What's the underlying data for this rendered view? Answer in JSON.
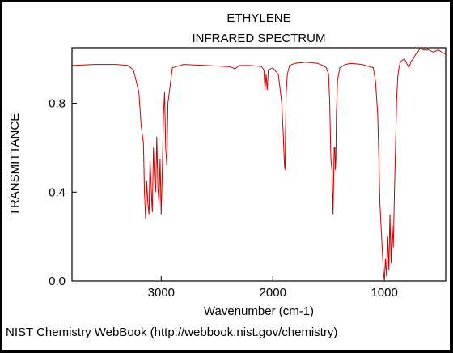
{
  "chart_data": {
    "type": "line",
    "title": "ETHYLENE",
    "subtitle": "INFRARED SPECTRUM",
    "xlabel": "Wavenumber (cm-1)",
    "ylabel": "TRANSMITTANCE",
    "footer": "NIST Chemistry WebBook (http://webbook.nist.gov/chemistry)",
    "xlim": [
      3800,
      450
    ],
    "ylim": [
      0.0,
      1.05
    ],
    "x_ticks": [
      3000,
      2000,
      1000
    ],
    "x_tick_labels": [
      "3000",
      "2000",
      "1000"
    ],
    "y_ticks": [
      0.0,
      0.4,
      0.8
    ],
    "y_tick_labels": [
      "0.0",
      "0.4",
      "0.8"
    ],
    "grid": false,
    "series_color": "#cc0000",
    "series": [
      {
        "x": [
          3800,
          3600,
          3400,
          3300,
          3250,
          3200,
          3180,
          3160,
          3150,
          3140,
          3130,
          3120,
          3110,
          3100,
          3090,
          3080,
          3070,
          3060,
          3050,
          3040,
          3030,
          3020,
          3010,
          3000,
          2990,
          2980,
          2970,
          2960,
          2950,
          2940,
          2900,
          2800,
          2600,
          2400,
          2360,
          2340,
          2300,
          2200,
          2100,
          2080,
          2070,
          2060,
          2050,
          2040,
          2000,
          1950,
          1920,
          1905,
          1895,
          1890,
          1885,
          1880,
          1870,
          1850,
          1800,
          1700,
          1600,
          1550,
          1520,
          1500,
          1490,
          1480,
          1470,
          1460,
          1450,
          1444,
          1440,
          1435,
          1430,
          1420,
          1400,
          1350,
          1300,
          1200,
          1100,
          1080,
          1060,
          1050,
          1040,
          1030,
          1020,
          1010,
          1000,
          990,
          980,
          970,
          960,
          950,
          940,
          930,
          920,
          910,
          900,
          890,
          880,
          870,
          860,
          850,
          820,
          800,
          780,
          760,
          740,
          720,
          700,
          680,
          650,
          600,
          560,
          520,
          480,
          450
        ],
        "y": [
          0.97,
          0.975,
          0.975,
          0.97,
          0.95,
          0.85,
          0.7,
          0.62,
          0.4,
          0.28,
          0.45,
          0.35,
          0.3,
          0.55,
          0.42,
          0.31,
          0.6,
          0.45,
          0.4,
          0.65,
          0.42,
          0.35,
          0.55,
          0.3,
          0.5,
          0.75,
          0.85,
          0.6,
          0.52,
          0.8,
          0.96,
          0.975,
          0.97,
          0.965,
          0.96,
          0.955,
          0.97,
          0.97,
          0.965,
          0.95,
          0.86,
          0.93,
          0.86,
          0.95,
          0.96,
          0.93,
          0.8,
          0.65,
          0.52,
          0.5,
          0.7,
          0.85,
          0.93,
          0.97,
          0.98,
          0.985,
          0.98,
          0.97,
          0.96,
          0.93,
          0.8,
          0.55,
          0.5,
          0.3,
          0.6,
          0.6,
          0.5,
          0.55,
          0.75,
          0.9,
          0.96,
          0.975,
          0.98,
          0.975,
          0.96,
          0.9,
          0.75,
          0.55,
          0.35,
          0.25,
          0.15,
          0.05,
          0.0,
          0.1,
          0.02,
          0.2,
          0.05,
          0.3,
          0.08,
          0.25,
          0.15,
          0.4,
          0.6,
          0.82,
          0.92,
          0.96,
          0.98,
          0.99,
          1.0,
          0.98,
          0.96,
          0.99,
          1.0,
          1.02,
          1.03,
          1.05,
          1.04,
          1.04,
          1.03,
          1.04,
          1.03,
          1.02
        ]
      }
    ]
  }
}
